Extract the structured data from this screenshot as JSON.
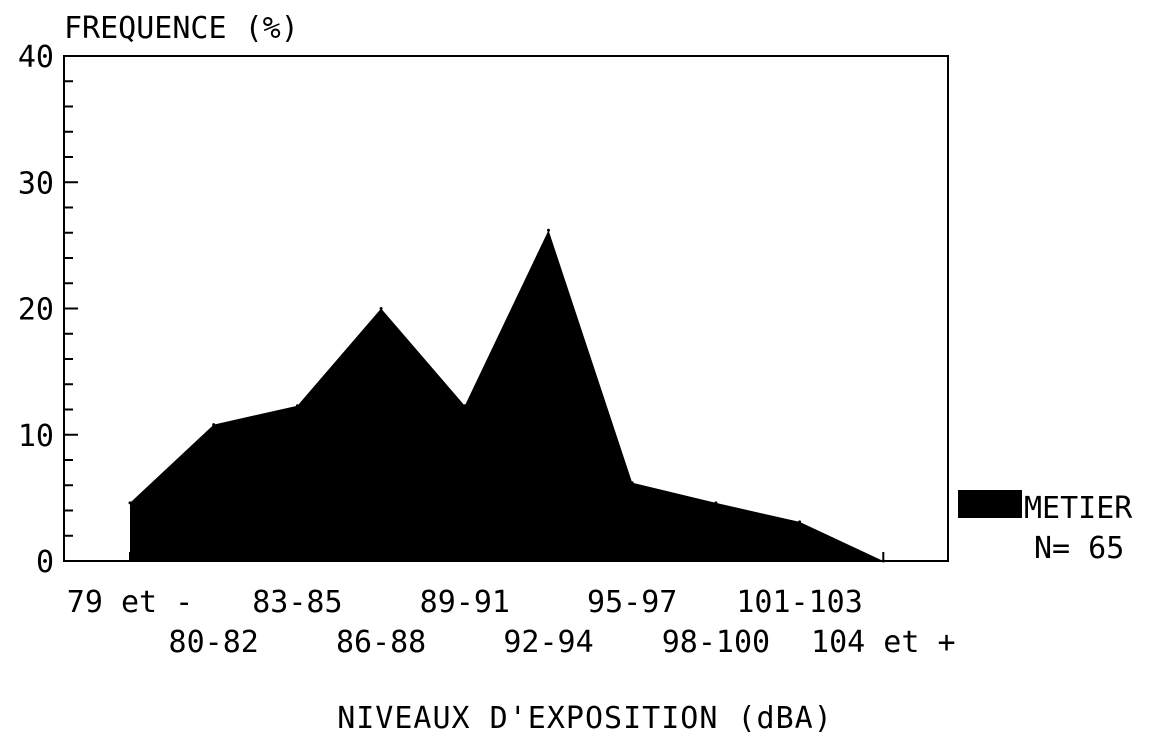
{
  "chart_data": {
    "type": "area",
    "ylabel": "FREQUENCE (%)",
    "xlabel": "NIVEAUX D'EXPOSITION (dBA)",
    "categories": [
      "79 et -",
      "80-82",
      "83-85",
      "86-88",
      "89-91",
      "92-94",
      "95-97",
      "98-100",
      "101-103",
      "104 et +"
    ],
    "series": [
      {
        "name": "METIER",
        "values": [
          4.6,
          10.8,
          12.3,
          20.0,
          12.3,
          26.2,
          6.2,
          4.6,
          3.1,
          0.0
        ]
      }
    ],
    "ylim": [
      0,
      40
    ],
    "yticks": [
      "0",
      "10",
      "20",
      "30",
      "40"
    ],
    "legend": {
      "label": "METIER",
      "n_text": "N= 65",
      "position": "right"
    },
    "grid": false,
    "colors": {
      "fill": "#000000",
      "axis": "#000000"
    }
  }
}
